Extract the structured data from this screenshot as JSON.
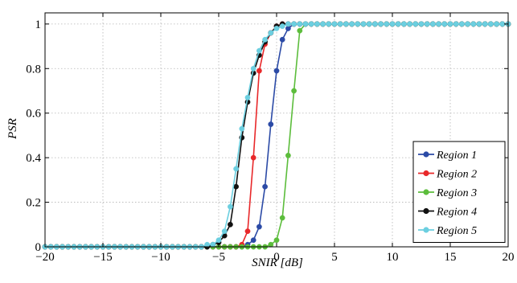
{
  "chart_data": {
    "type": "line",
    "title": "",
    "xlabel": "SNIR [dB]",
    "ylabel": "PSR",
    "xlim": [
      -20,
      20
    ],
    "ylim": [
      0,
      1.05
    ],
    "xticks": [
      -20,
      -15,
      -10,
      -5,
      0,
      5,
      10,
      15,
      20
    ],
    "xtick_labels": [
      "−20",
      "−15",
      "−10",
      "−5",
      "0",
      "5",
      "10",
      "15",
      "20"
    ],
    "yticks": [
      0,
      0.2,
      0.4,
      0.6,
      0.8,
      1
    ],
    "ytick_labels": [
      "0",
      "0.2",
      "0.4",
      "0.6",
      "0.8",
      "1"
    ],
    "grid": true,
    "legend_position": "bottom-right",
    "x_start": -20,
    "x_step": 0.5,
    "series": [
      {
        "name": "Region 1",
        "color": "#2b4aa6",
        "values": [
          0,
          0,
          0,
          0,
          0,
          0,
          0,
          0,
          0,
          0,
          0,
          0,
          0,
          0,
          0,
          0,
          0,
          0,
          0,
          0,
          0,
          0,
          0,
          0,
          0,
          0,
          0,
          0,
          0,
          0,
          0,
          0,
          0,
          0,
          0,
          0.01,
          0.03,
          0.09,
          0.27,
          0.55,
          0.79,
          0.93,
          0.98,
          1,
          1,
          1,
          1,
          1,
          1,
          1,
          1,
          1,
          1,
          1,
          1,
          1,
          1,
          1,
          1,
          1,
          1,
          1,
          1,
          1,
          1,
          1,
          1,
          1,
          1,
          1,
          1,
          1,
          1,
          1,
          1,
          1,
          1,
          1,
          1,
          1,
          1
        ]
      },
      {
        "name": "Region 2",
        "color": "#e8282a",
        "values": [
          0,
          0,
          0,
          0,
          0,
          0,
          0,
          0,
          0,
          0,
          0,
          0,
          0,
          0,
          0,
          0,
          0,
          0,
          0,
          0,
          0,
          0,
          0,
          0,
          0,
          0,
          0,
          0,
          0,
          0,
          0,
          0,
          0,
          0,
          0.01,
          0.07,
          0.4,
          0.79,
          0.91,
          0.96,
          0.99,
          1,
          1,
          1,
          1,
          1,
          1,
          1,
          1,
          1,
          1,
          1,
          1,
          1,
          1,
          1,
          1,
          1,
          1,
          1,
          1,
          1,
          1,
          1,
          1,
          1,
          1,
          1,
          1,
          1,
          1,
          1,
          1,
          1,
          1,
          1,
          1,
          1,
          1,
          1,
          1
        ]
      },
      {
        "name": "Region 3",
        "color": "#5cbd3c",
        "values": [
          0,
          0,
          0,
          0,
          0,
          0,
          0,
          0,
          0,
          0,
          0,
          0,
          0,
          0,
          0,
          0,
          0,
          0,
          0,
          0,
          0,
          0,
          0,
          0,
          0,
          0,
          0,
          0,
          0,
          0,
          0,
          0,
          0,
          0,
          0,
          0,
          0,
          0,
          0,
          0.01,
          0.03,
          0.13,
          0.41,
          0.7,
          0.97,
          1,
          1,
          1,
          1,
          1,
          1,
          1,
          1,
          1,
          1,
          1,
          1,
          1,
          1,
          1,
          1,
          1,
          1,
          1,
          1,
          1,
          1,
          1,
          1,
          1,
          1,
          1,
          1,
          1,
          1,
          1,
          1,
          1,
          1,
          1,
          1
        ]
      },
      {
        "name": "Region 4",
        "color": "#111111",
        "values": [
          0,
          0,
          0,
          0,
          0,
          0,
          0,
          0,
          0,
          0,
          0,
          0,
          0,
          0,
          0,
          0,
          0,
          0,
          0,
          0,
          0,
          0,
          0,
          0,
          0,
          0,
          0,
          0,
          0,
          0.01,
          0.02,
          0.05,
          0.1,
          0.27,
          0.49,
          0.65,
          0.78,
          0.86,
          0.92,
          0.96,
          0.99,
          1,
          1,
          1,
          1,
          1,
          1,
          1,
          1,
          1,
          1,
          1,
          1,
          1,
          1,
          1,
          1,
          1,
          1,
          1,
          1,
          1,
          1,
          1,
          1,
          1,
          1,
          1,
          1,
          1,
          1,
          1,
          1,
          1,
          1,
          1,
          1,
          1,
          1,
          1,
          1
        ]
      },
      {
        "name": "Region 5",
        "color": "#6ccfe0",
        "values": [
          0,
          0,
          0,
          0,
          0,
          0,
          0,
          0,
          0,
          0,
          0,
          0,
          0,
          0,
          0,
          0,
          0,
          0,
          0,
          0,
          0,
          0,
          0,
          0,
          0,
          0,
          0,
          0,
          0.01,
          0.01,
          0.03,
          0.07,
          0.18,
          0.35,
          0.53,
          0.67,
          0.8,
          0.88,
          0.93,
          0.96,
          0.98,
          0.99,
          1,
          1,
          1,
          1,
          1,
          1,
          1,
          1,
          1,
          1,
          1,
          1,
          1,
          1,
          1,
          1,
          1,
          1,
          1,
          1,
          1,
          1,
          1,
          1,
          1,
          1,
          1,
          1,
          1,
          1,
          1,
          1,
          1,
          1,
          1,
          1,
          1,
          1,
          1
        ]
      }
    ]
  }
}
